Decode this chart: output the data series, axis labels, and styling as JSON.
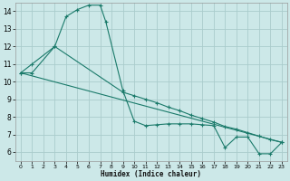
{
  "xlabel": "Humidex (Indice chaleur)",
  "bg_color": "#cce8e8",
  "grid_color": "#aacccc",
  "line_color": "#1a7a6a",
  "xlim": [
    -0.5,
    23.5
  ],
  "ylim": [
    5.5,
    14.5
  ],
  "xticks": [
    0,
    1,
    2,
    3,
    4,
    5,
    6,
    7,
    8,
    9,
    10,
    11,
    12,
    13,
    14,
    15,
    16,
    17,
    18,
    19,
    20,
    21,
    22,
    23
  ],
  "yticks": [
    6,
    7,
    8,
    9,
    10,
    11,
    12,
    13,
    14
  ],
  "series": [
    {
      "x": [
        0,
        1,
        3,
        4,
        5,
        6,
        7,
        7.5,
        9,
        10,
        11,
        12,
        13,
        14,
        15,
        16,
        17,
        18,
        19,
        20,
        21,
        22,
        23
      ],
      "y": [
        10.5,
        10.5,
        12.0,
        13.7,
        14.1,
        14.35,
        14.35,
        13.4,
        9.5,
        7.75,
        7.5,
        7.55,
        7.6,
        7.6,
        7.6,
        7.55,
        7.5,
        6.25,
        6.85,
        6.85,
        5.9,
        5.9,
        6.55
      ],
      "has_markers": true
    },
    {
      "x": [
        0,
        1,
        3,
        9,
        10,
        11,
        12,
        13,
        14,
        15,
        16,
        17,
        18,
        19,
        20,
        21,
        22,
        23
      ],
      "y": [
        10.5,
        11.0,
        12.0,
        9.4,
        9.2,
        9.0,
        8.8,
        8.55,
        8.35,
        8.1,
        7.9,
        7.7,
        7.45,
        7.3,
        7.1,
        6.9,
        6.7,
        6.55
      ],
      "has_markers": true
    },
    {
      "x": [
        0,
        23
      ],
      "y": [
        10.5,
        6.55
      ],
      "has_markers": false
    }
  ]
}
